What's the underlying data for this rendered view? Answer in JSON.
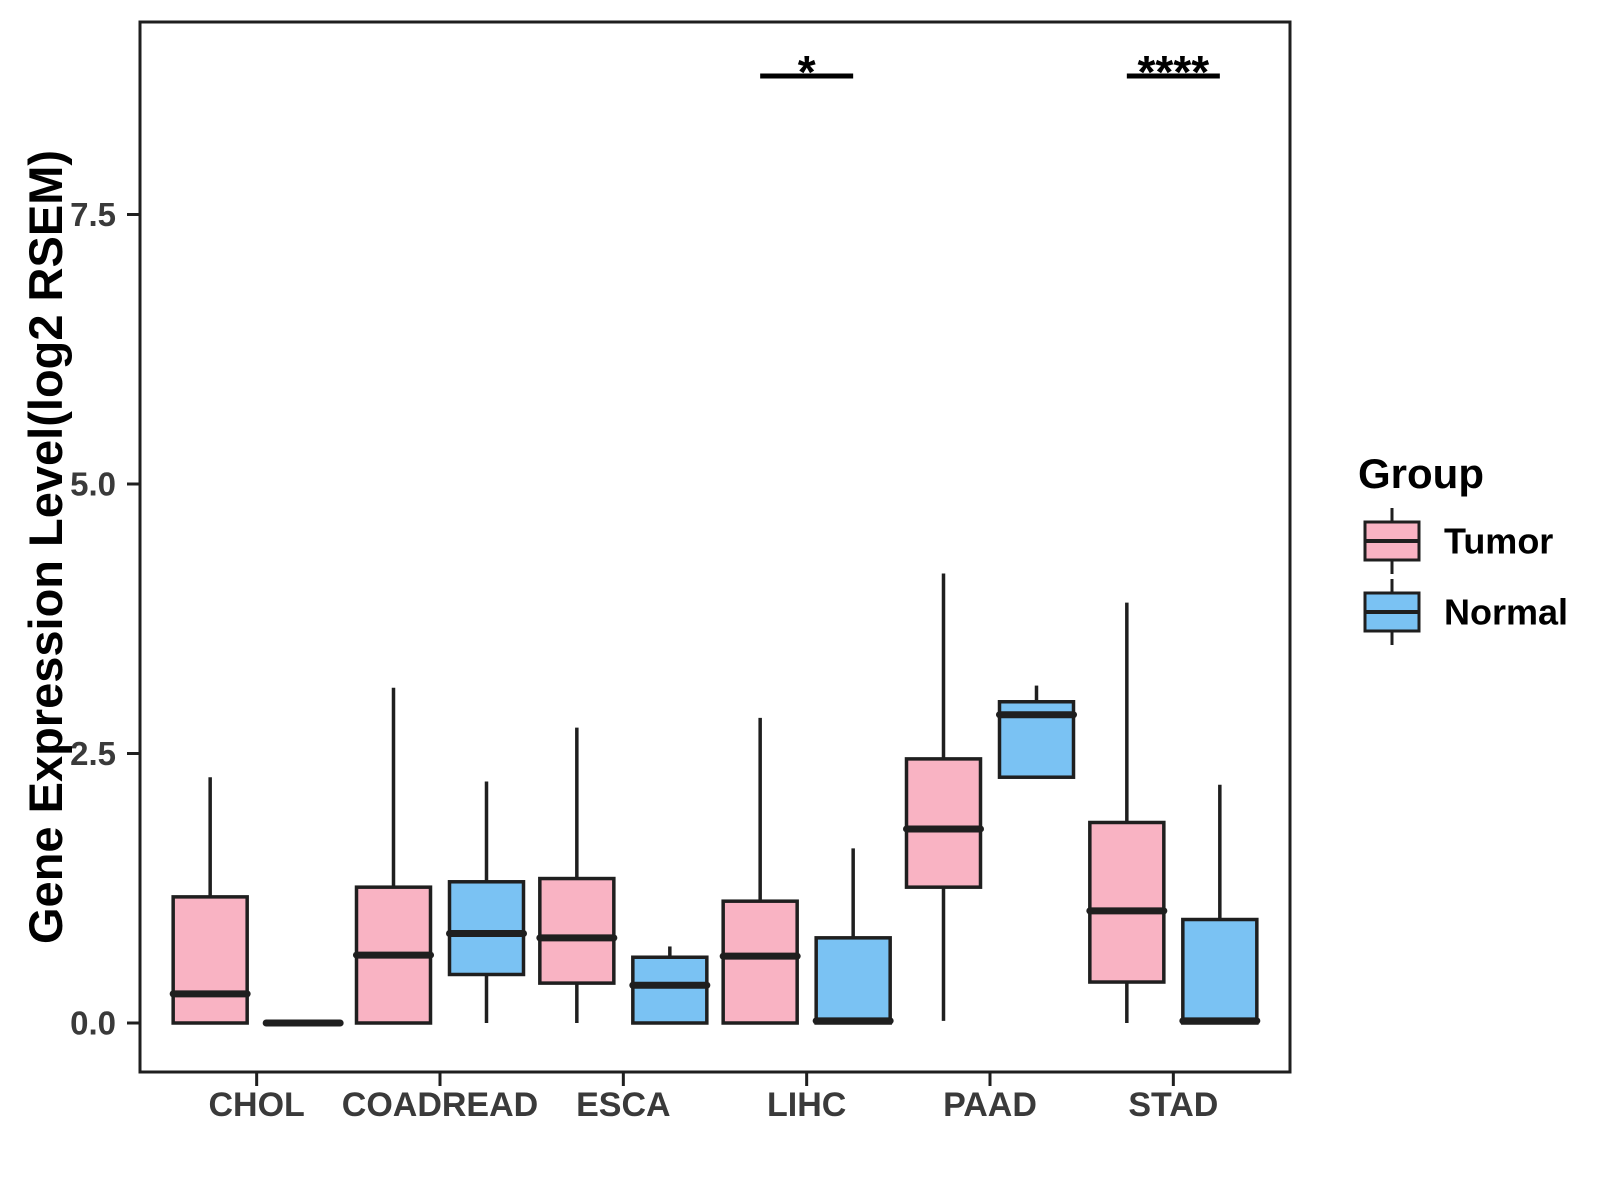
{
  "chart_data": {
    "type": "boxplot",
    "title": "",
    "xlabel": "",
    "ylabel": "Gene Expression Level(log2 RSEM)",
    "ylim": [
      -0.45,
      9.3
    ],
    "grid": false,
    "legend_position": "right",
    "y_ticks": [
      0.0,
      2.5,
      5.0,
      7.5
    ],
    "y_tick_labels": [
      "0.0",
      "2.5",
      "5.0",
      "7.5"
    ],
    "categories": [
      "CHOL",
      "COADREAD",
      "ESCA",
      "LIHC",
      "PAAD",
      "STAD"
    ],
    "series": [
      {
        "name": "Tumor",
        "fill": "#F9B3C3",
        "boxes": [
          {
            "category": "CHOL",
            "min": 0,
            "q1": 0,
            "median": 0.27,
            "q3": 1.17,
            "max": 2.28
          },
          {
            "category": "COADREAD",
            "min": 0,
            "q1": 0,
            "median": 0.63,
            "q3": 1.26,
            "max": 3.11
          },
          {
            "category": "ESCA",
            "min": 0,
            "q1": 0.37,
            "median": 0.79,
            "q3": 1.34,
            "max": 2.74
          },
          {
            "category": "LIHC",
            "min": 0,
            "q1": 0,
            "median": 0.62,
            "q3": 1.13,
            "max": 2.83
          },
          {
            "category": "PAAD",
            "min": 0.02,
            "q1": 1.26,
            "median": 1.8,
            "q3": 2.45,
            "max": 4.17
          },
          {
            "category": "STAD",
            "min": 0,
            "q1": 0.38,
            "median": 1.04,
            "q3": 1.86,
            "max": 3.9
          }
        ]
      },
      {
        "name": "Normal",
        "fill": "#7AC2F3",
        "boxes": [
          {
            "category": "CHOL",
            "min": 0,
            "q1": 0,
            "median": 0,
            "q3": 0,
            "max": 0
          },
          {
            "category": "COADREAD",
            "min": 0,
            "q1": 0.45,
            "median": 0.83,
            "q3": 1.31,
            "max": 2.24
          },
          {
            "category": "ESCA",
            "min": 0,
            "q1": 0,
            "median": 0.35,
            "q3": 0.61,
            "max": 0.71
          },
          {
            "category": "LIHC",
            "min": 0,
            "q1": 0,
            "median": 0.02,
            "q3": 0.79,
            "max": 1.62
          },
          {
            "category": "PAAD",
            "min": 2.28,
            "q1": 2.28,
            "median": 2.86,
            "q3": 2.98,
            "max": 3.13
          },
          {
            "category": "STAD",
            "min": 0,
            "q1": 0,
            "median": 0.02,
            "q3": 0.96,
            "max": 2.21
          }
        ]
      }
    ],
    "significance": [
      {
        "category": "LIHC",
        "label": "*"
      },
      {
        "category": "STAD",
        "label": "****"
      }
    ],
    "legend": {
      "title": "Group",
      "entries": [
        {
          "label": "Tumor",
          "color": "#F9B3C3"
        },
        {
          "label": "Normal",
          "color": "#7AC2F3"
        }
      ]
    },
    "colors": {
      "box_border": "#1F1F1F",
      "axis_line": "#1F1F1F",
      "axis_text": "#3A3A3A",
      "title_text": "#000000"
    }
  }
}
